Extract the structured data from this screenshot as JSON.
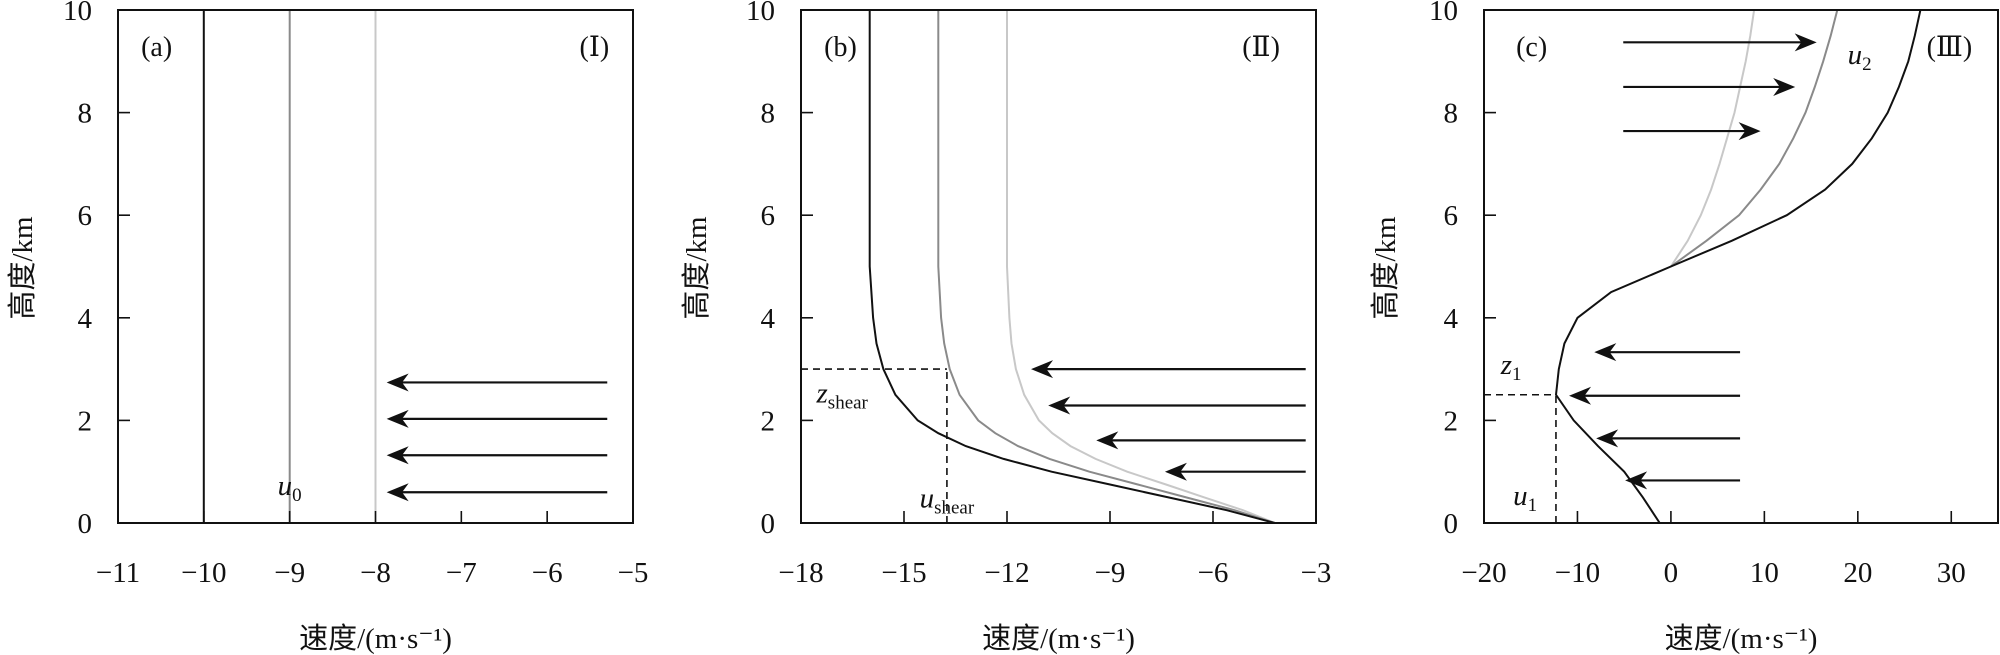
{
  "chart_data": [
    {
      "type": "line",
      "panel_label": "(a)",
      "regime_label": "(Ⅰ)",
      "xlabel": "速度/(m·s⁻¹)",
      "ylabel": "高度/km",
      "xlim": [
        -11,
        -5
      ],
      "ylim": [
        0,
        10
      ],
      "xticks": [
        -11,
        -10,
        -9,
        -8,
        -7,
        -6,
        -5
      ],
      "xtick_labels": [
        "−11",
        "−10",
        "−9",
        "−8",
        "−7",
        "−6",
        "−5"
      ],
      "yticks": [
        0,
        2,
        4,
        6,
        8,
        10
      ],
      "ytick_labels": [
        "0",
        "2",
        "4",
        "6",
        "8",
        "10"
      ],
      "series": [
        {
          "name": "black",
          "color": "#111111",
          "points": [
            [
              -10,
              0
            ],
            [
              -10,
              10
            ]
          ]
        },
        {
          "name": "gray",
          "color": "#8a8a8a",
          "points": [
            [
              -9,
              0
            ],
            [
              -9,
              10
            ]
          ]
        },
        {
          "name": "light-gray",
          "color": "#c8c8c8",
          "points": [
            [
              -8,
              0
            ],
            [
              -8,
              10
            ]
          ]
        }
      ],
      "dashed": [],
      "arrows": [
        {
          "from": [
            -5.3,
            2.74
          ],
          "to": [
            -7.87,
            2.74
          ]
        },
        {
          "from": [
            -5.3,
            2.03
          ],
          "to": [
            -7.87,
            2.03
          ]
        },
        {
          "from": [
            -5.3,
            1.32
          ],
          "to": [
            -7.87,
            1.32
          ]
        },
        {
          "from": [
            -5.3,
            0.6
          ],
          "to": [
            -7.87,
            0.6
          ]
        }
      ],
      "annotations": [
        {
          "main": "u",
          "sub": "0"
        }
      ]
    },
    {
      "type": "line",
      "panel_label": "(b)",
      "regime_label": "(Ⅱ)",
      "xlabel": "速度/(m·s⁻¹)",
      "ylabel": "高度/km",
      "xlim": [
        -18,
        -3
      ],
      "ylim": [
        0,
        10
      ],
      "xticks": [
        -18,
        -15,
        -12,
        -9,
        -6,
        -3
      ],
      "xtick_labels": [
        "−18",
        "−15",
        "−12",
        "−9",
        "−6",
        "−3"
      ],
      "yticks": [
        0,
        2,
        4,
        6,
        8,
        10
      ],
      "ytick_labels": [
        "0",
        "2",
        "4",
        "6",
        "8",
        "10"
      ],
      "series": [
        {
          "name": "black",
          "color": "#111111",
          "points": [
            [
              -4.2,
              0
            ],
            [
              -5.6,
              0.25
            ],
            [
              -7.3,
              0.5
            ],
            [
              -9.0,
              0.75
            ],
            [
              -10.7,
              1
            ],
            [
              -12.1,
              1.25
            ],
            [
              -13.2,
              1.5
            ],
            [
              -14.0,
              1.75
            ],
            [
              -14.6,
              2
            ],
            [
              -15.25,
              2.5
            ],
            [
              -15.6,
              3
            ],
            [
              -15.8,
              3.5
            ],
            [
              -15.9,
              4
            ],
            [
              -16,
              5
            ],
            [
              -16,
              10
            ]
          ]
        },
        {
          "name": "gray",
          "color": "#8a8a8a",
          "points": [
            [
              -4.2,
              0
            ],
            [
              -5.37,
              0.25
            ],
            [
              -6.78,
              0.5
            ],
            [
              -8.19,
              0.75
            ],
            [
              -9.6,
              1
            ],
            [
              -10.76,
              1.25
            ],
            [
              -11.68,
              1.5
            ],
            [
              -12.34,
              1.75
            ],
            [
              -12.84,
              2
            ],
            [
              -13.38,
              2.5
            ],
            [
              -13.67,
              3
            ],
            [
              -13.83,
              3.5
            ],
            [
              -13.92,
              4
            ],
            [
              -14,
              5
            ],
            [
              -14,
              10
            ]
          ]
        },
        {
          "name": "light-gray",
          "color": "#c8c8c8",
          "points": [
            [
              -4.2,
              0
            ],
            [
              -5.13,
              0.25
            ],
            [
              -6.25,
              0.5
            ],
            [
              -7.37,
              0.75
            ],
            [
              -8.5,
              1
            ],
            [
              -9.42,
              1.25
            ],
            [
              -10.15,
              1.5
            ],
            [
              -10.68,
              1.75
            ],
            [
              -11.07,
              2
            ],
            [
              -11.5,
              2.5
            ],
            [
              -11.74,
              3
            ],
            [
              -11.87,
              3.5
            ],
            [
              -11.93,
              4
            ],
            [
              -12,
              5
            ],
            [
              -12,
              10
            ]
          ]
        }
      ],
      "dashed": [
        {
          "from": [
            -18,
            3
          ],
          "to": [
            -13.75,
            3
          ]
        },
        {
          "from": [
            -13.75,
            0
          ],
          "to": [
            -13.75,
            3
          ]
        }
      ],
      "arrows": [
        {
          "from": [
            -3.3,
            3.0
          ],
          "to": [
            -11.3,
            3.0
          ]
        },
        {
          "from": [
            -3.3,
            2.29
          ],
          "to": [
            -10.8,
            2.29
          ]
        },
        {
          "from": [
            -3.3,
            1.61
          ],
          "to": [
            -9.4,
            1.61
          ]
        },
        {
          "from": [
            -3.3,
            1.0
          ],
          "to": [
            -7.4,
            1.0
          ]
        }
      ],
      "annotations": [
        {
          "main": "z",
          "sub": "shear"
        },
        {
          "main": "u",
          "sub": "shear"
        }
      ]
    },
    {
      "type": "line",
      "panel_label": "(c)",
      "regime_label": "(Ⅲ)",
      "xlabel": "速度/(m·s⁻¹)",
      "ylabel": "高度/km",
      "xlim": [
        -20,
        35
      ],
      "ylim": [
        0,
        10
      ],
      "xticks": [
        -20,
        -10,
        0,
        10,
        20,
        30
      ],
      "xtick_labels": [
        "−20",
        "−10",
        "0",
        "10",
        "20",
        "30"
      ],
      "yticks": [
        0,
        2,
        4,
        6,
        8,
        10
      ],
      "ytick_labels": [
        "0",
        "2",
        "4",
        "6",
        "8",
        "10"
      ],
      "series": [
        {
          "name": "black",
          "color": "#111111",
          "points": [
            [
              -1.2,
              0
            ],
            [
              -3,
              0.5
            ],
            [
              -5,
              1
            ],
            [
              -7.8,
              1.5
            ],
            [
              -10.4,
              2
            ],
            [
              -12.3,
              2.5
            ],
            [
              -12,
              3
            ],
            [
              -11.4,
              3.5
            ],
            [
              -10,
              4
            ],
            [
              -6.4,
              4.5
            ],
            [
              0,
              5
            ],
            [
              6.5,
              5.5
            ],
            [
              12.4,
              6
            ],
            [
              16.5,
              6.5
            ],
            [
              19.4,
              7
            ],
            [
              21.5,
              7.5
            ],
            [
              23.2,
              8
            ],
            [
              24.4,
              8.5
            ],
            [
              25.4,
              9
            ],
            [
              26.1,
              9.5
            ],
            [
              26.7,
              10
            ]
          ]
        },
        {
          "name": "gray",
          "color": "#8a8a8a",
          "points": [
            [
              0,
              5
            ],
            [
              3.8,
              5.5
            ],
            [
              7.3,
              6
            ],
            [
              9.6,
              6.5
            ],
            [
              11.6,
              7
            ],
            [
              13.1,
              7.5
            ],
            [
              14.4,
              8
            ],
            [
              15.4,
              8.5
            ],
            [
              16.3,
              9
            ],
            [
              17.1,
              9.5
            ],
            [
              17.8,
              10
            ]
          ]
        },
        {
          "name": "light-gray",
          "color": "#c8c8c8",
          "points": [
            [
              0,
              5
            ],
            [
              1.8,
              5.5
            ],
            [
              3.2,
              6
            ],
            [
              4.3,
              6.5
            ],
            [
              5.2,
              7
            ],
            [
              6.0,
              7.5
            ],
            [
              6.8,
              8
            ],
            [
              7.4,
              8.5
            ],
            [
              8.0,
              9
            ],
            [
              8.5,
              9.5
            ],
            [
              8.9,
              10
            ]
          ]
        }
      ],
      "dashed": [
        {
          "from": [
            -20,
            2.5
          ],
          "to": [
            -12.3,
            2.5
          ]
        },
        {
          "from": [
            -12.3,
            0
          ],
          "to": [
            -12.3,
            2.5
          ]
        }
      ],
      "arrows": [
        {
          "from": [
            -5.1,
            9.37
          ],
          "to": [
            15.6,
            9.37
          ]
        },
        {
          "from": [
            -5.1,
            8.5
          ],
          "to": [
            13.3,
            8.5
          ]
        },
        {
          "from": [
            -5.1,
            7.64
          ],
          "to": [
            9.6,
            7.64
          ]
        },
        {
          "from": [
            7.4,
            3.33
          ],
          "to": [
            -8.2,
            3.33
          ]
        },
        {
          "from": [
            7.4,
            2.48
          ],
          "to": [
            -10.9,
            2.48
          ]
        },
        {
          "from": [
            7.4,
            1.65
          ],
          "to": [
            -8.0,
            1.65
          ]
        },
        {
          "from": [
            7.4,
            0.83
          ],
          "to": [
            -4.9,
            0.83
          ]
        }
      ],
      "annotations": [
        {
          "main": "u",
          "sub": "2"
        },
        {
          "main": "z",
          "sub": "1"
        },
        {
          "main": "u",
          "sub": "1"
        }
      ]
    }
  ]
}
